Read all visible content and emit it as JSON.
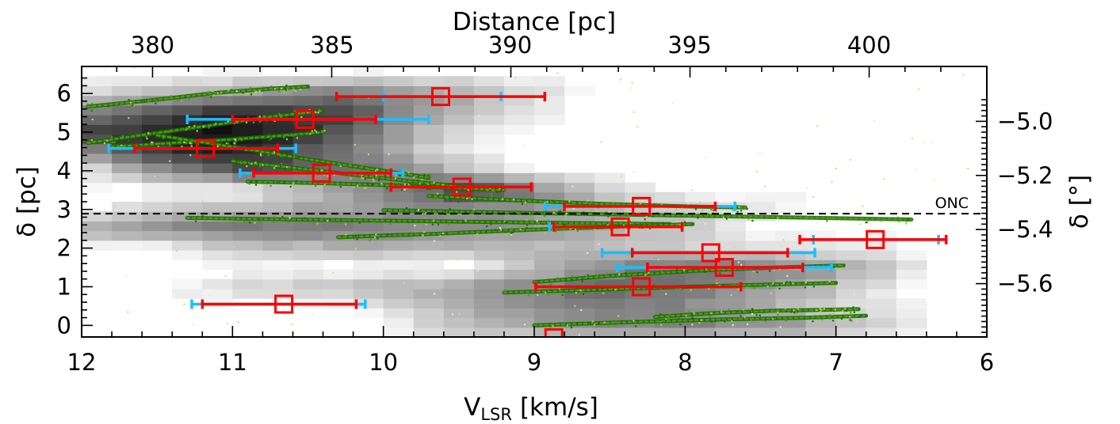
{
  "chart_data": {
    "type": "scatter",
    "x_axis": {
      "label_main": "V",
      "label_sub": "LSR",
      "label_units": "[km/s]",
      "range": [
        12,
        6
      ],
      "ticks": [
        12,
        11,
        10,
        9,
        8,
        7,
        6
      ],
      "tick_labels": [
        "12",
        "11",
        "10",
        "9",
        "8",
        "7",
        "6"
      ]
    },
    "x2_axis": {
      "label": "Distance [pc]",
      "ticks": [
        380,
        385,
        390,
        395,
        400
      ],
      "tick_labels": [
        "380",
        "385",
        "390",
        "395",
        "400"
      ],
      "values_at_velocity": [
        11.53,
        10.34,
        9.16,
        7.97,
        6.78
      ]
    },
    "y_axis": {
      "label": "δ [pc]",
      "range": [
        -0.3,
        6.7
      ],
      "ticks": [
        0,
        1,
        2,
        3,
        4,
        5,
        6
      ],
      "tick_labels": [
        "0",
        "1",
        "2",
        "3",
        "4",
        "5",
        "6"
      ]
    },
    "y2_axis": {
      "label": "δ [°]",
      "ticks": [
        -5.0,
        -5.2,
        -5.4,
        -5.6
      ],
      "tick_labels": [
        "−5.0",
        "−5.2",
        "−5.4",
        "−5.6"
      ],
      "values_at_pc": [
        5.28,
        3.88,
        2.48,
        1.08
      ]
    },
    "reference_line": {
      "label": "ONC",
      "y": 2.89,
      "style": "dashed"
    },
    "points": [
      {
        "x": 9.62,
        "y": 5.92,
        "err_red": [
          10.31,
          8.93
        ],
        "err_cyan": [
          10.0,
          9.22
        ]
      },
      {
        "x": 10.52,
        "y": 5.33,
        "err_red": [
          11.0,
          10.05
        ],
        "err_cyan": [
          11.3,
          9.7
        ]
      },
      {
        "x": 11.18,
        "y": 4.58,
        "err_red": [
          11.65,
          10.7
        ],
        "err_cyan": [
          11.82,
          10.58
        ]
      },
      {
        "x": 10.41,
        "y": 3.94,
        "err_red": [
          10.86,
          9.95
        ],
        "err_cyan": [
          10.95,
          9.87
        ]
      },
      {
        "x": 9.48,
        "y": 3.58,
        "err_red": [
          9.95,
          9.02
        ],
        "err_cyan": null
      },
      {
        "x": 8.29,
        "y": 3.08,
        "err_red": [
          8.8,
          7.8
        ],
        "err_cyan": [
          8.93,
          7.67
        ]
      },
      {
        "x": 8.43,
        "y": 2.55,
        "err_red": [
          8.87,
          8.02
        ],
        "err_cyan": [
          8.9,
          8.02
        ]
      },
      {
        "x": 6.74,
        "y": 2.22,
        "err_red": [
          7.24,
          6.27
        ],
        "err_cyan": [
          7.15,
          6.32
        ]
      },
      {
        "x": 7.83,
        "y": 1.88,
        "err_red": [
          8.35,
          7.32
        ],
        "err_cyan": [
          8.55,
          7.14
        ]
      },
      {
        "x": 7.74,
        "y": 1.5,
        "err_red": [
          8.25,
          7.22
        ],
        "err_cyan": [
          8.45,
          7.03
        ]
      },
      {
        "x": 8.29,
        "y": 1.0,
        "err_red": [
          8.99,
          7.63
        ],
        "err_cyan": null
      },
      {
        "x": 10.66,
        "y": 0.55,
        "err_red": [
          11.2,
          10.18
        ],
        "err_cyan": [
          11.27,
          10.12
        ]
      },
      {
        "x": 8.87,
        "y": -0.32,
        "err_red": null,
        "err_cyan": null
      }
    ],
    "green_tracks": [
      {
        "x": [
          11.96,
          11.55,
          11.1,
          10.75,
          10.5
        ],
        "y": [
          5.66,
          5.82,
          6.02,
          6.12,
          6.18
        ]
      },
      {
        "x": [
          11.96,
          11.5,
          11.1,
          10.75,
          10.4
        ],
        "y": [
          4.72,
          4.98,
          5.2,
          5.4,
          5.55
        ]
      },
      {
        "x": [
          11.8,
          11.4,
          11.05,
          10.7,
          10.4
        ],
        "y": [
          4.62,
          4.72,
          4.8,
          4.9,
          5.0
        ]
      },
      {
        "x": [
          11.5,
          11.0,
          10.5,
          10.0,
          9.7
        ],
        "y": [
          4.92,
          4.62,
          4.3,
          4.0,
          3.82
        ]
      },
      {
        "x": [
          11.0,
          10.6,
          10.2,
          9.8,
          9.5
        ],
        "y": [
          4.25,
          4.08,
          3.9,
          3.72,
          3.6
        ]
      },
      {
        "x": [
          10.9,
          10.4,
          9.9,
          9.5,
          9.2
        ],
        "y": [
          3.72,
          3.68,
          3.62,
          3.55,
          3.5
        ]
      },
      {
        "x": [
          9.7,
          9.2,
          8.6,
          8.0,
          7.6
        ],
        "y": [
          3.35,
          3.25,
          3.15,
          3.08,
          3.05
        ]
      },
      {
        "x": [
          10.0,
          9.2,
          8.3,
          7.4,
          6.5
        ],
        "y": [
          2.98,
          2.92,
          2.86,
          2.8,
          2.74
        ]
      },
      {
        "x": [
          11.3,
          10.6,
          9.8,
          9.0,
          8.1
        ],
        "y": [
          2.78,
          2.74,
          2.7,
          2.66,
          2.62
        ]
      },
      {
        "x": [
          10.3,
          9.6,
          9.0,
          8.5,
          7.95
        ],
        "y": [
          2.28,
          2.38,
          2.48,
          2.55,
          2.62
        ]
      },
      {
        "x": [
          9.0,
          8.5,
          7.9,
          7.4,
          6.95
        ],
        "y": [
          1.12,
          1.28,
          1.42,
          1.5,
          1.55
        ]
      },
      {
        "x": [
          9.2,
          8.6,
          8.0,
          7.5,
          7.0
        ],
        "y": [
          0.85,
          0.92,
          1.0,
          1.05,
          1.1
        ]
      },
      {
        "x": [
          9.0,
          8.4,
          7.8,
          7.2,
          6.8
        ],
        "y": [
          0.0,
          0.08,
          0.15,
          0.2,
          0.25
        ]
      },
      {
        "x": [
          8.2,
          7.8,
          7.4,
          7.1,
          6.85
        ],
        "y": [
          0.22,
          0.32,
          0.38,
          0.4,
          0.42
        ]
      }
    ],
    "background_density": [
      {
        "y": 6.0,
        "x": [
          11.8,
          10.3,
          9.5,
          9.0
        ],
        "level": [
          0.18,
          0.55,
          0.35,
          0.15
        ]
      },
      {
        "y": 5.5,
        "x": [
          11.9,
          11.0,
          10.3,
          9.8,
          9.2
        ],
        "level": [
          0.55,
          0.85,
          0.75,
          0.4,
          0.15
        ]
      },
      {
        "y": 5.0,
        "x": [
          11.9,
          11.2,
          10.6,
          10.0,
          9.5
        ],
        "level": [
          0.75,
          0.95,
          0.85,
          0.45,
          0.15
        ]
      },
      {
        "y": 4.5,
        "x": [
          11.8,
          11.2,
          10.7,
          10.2,
          9.7
        ],
        "level": [
          0.6,
          0.9,
          0.75,
          0.5,
          0.2
        ]
      },
      {
        "y": 4.0,
        "x": [
          11.6,
          10.9,
          10.3,
          9.8,
          9.3
        ],
        "level": [
          0.35,
          0.7,
          0.6,
          0.45,
          0.15
        ]
      },
      {
        "y": 3.5,
        "x": [
          10.5,
          9.8,
          9.4,
          9.0,
          8.5
        ],
        "level": [
          0.25,
          0.55,
          0.85,
          0.5,
          0.2
        ]
      },
      {
        "y": 3.0,
        "x": [
          11.5,
          10.5,
          9.5,
          8.5,
          7.6
        ],
        "level": [
          0.2,
          0.35,
          0.45,
          0.3,
          0.15
        ]
      },
      {
        "y": 2.5,
        "x": [
          11.9,
          11.0,
          10.0,
          9.0,
          8.0
        ],
        "level": [
          0.35,
          0.55,
          0.5,
          0.4,
          0.2
        ]
      },
      {
        "y": 2.0,
        "x": [
          11.0,
          10.0,
          8.5,
          7.5,
          6.8
        ],
        "level": [
          0.2,
          0.3,
          0.25,
          0.15,
          0.1
        ]
      },
      {
        "y": 1.5,
        "x": [
          9.0,
          8.2,
          7.5,
          6.8
        ],
        "level": [
          0.25,
          0.55,
          0.5,
          0.3
        ]
      },
      {
        "y": 1.0,
        "x": [
          11.0,
          9.5,
          8.6,
          7.8,
          7.0
        ],
        "level": [
          0.15,
          0.35,
          0.6,
          0.5,
          0.25
        ]
      },
      {
        "y": 0.5,
        "x": [
          9.8,
          9.0,
          8.2,
          7.5,
          6.9
        ],
        "level": [
          0.2,
          0.45,
          0.5,
          0.35,
          0.15
        ]
      },
      {
        "y": 0.0,
        "x": [
          9.6,
          8.8,
          8.0,
          7.3,
          6.8
        ],
        "level": [
          0.2,
          0.45,
          0.5,
          0.4,
          0.2
        ]
      }
    ],
    "colors": {
      "markers": "#ff0000",
      "error_red": "#ff0000",
      "error_cyan": "#19bfff",
      "tracks_dark": "#1a6b00",
      "tracks_mid": "#4c9a13",
      "tracks_light": "#a9cc55",
      "background": "#000000"
    }
  }
}
